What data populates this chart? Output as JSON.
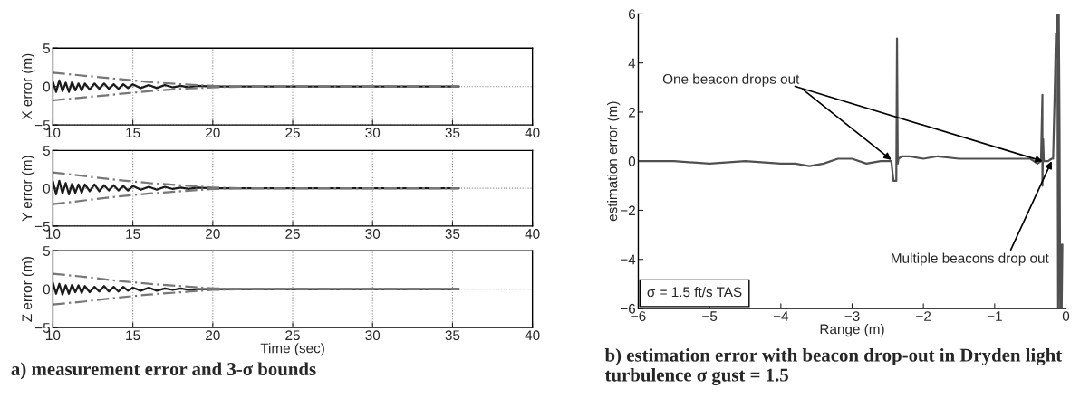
{
  "chart_data": [
    {
      "type": "line",
      "ylabel": "X error (m)",
      "xlim": [
        10,
        40
      ],
      "xticks": [
        10,
        15,
        20,
        25,
        30,
        35,
        40
      ],
      "ylim": [
        -5,
        5
      ],
      "yticks": [
        -5,
        0,
        5
      ],
      "grid": true,
      "series": [
        {
          "color": "#1a1a1a",
          "line_style": "solid",
          "x": [
            10,
            10.2,
            10.4,
            10.6,
            10.8,
            11,
            11.2,
            11.4,
            11.6,
            11.8,
            12,
            12.3,
            12.6,
            12.9,
            13.2,
            13.5,
            13.8,
            14.1,
            14.4,
            14.7,
            15,
            15.5,
            16,
            16.5,
            17,
            17.5,
            18,
            18.5,
            19,
            20,
            35.4
          ],
          "values": [
            0.6,
            -0.7,
            0.8,
            -0.6,
            0.5,
            -0.7,
            0.6,
            -0.5,
            0.4,
            -0.5,
            0.4,
            -0.4,
            0.4,
            -0.3,
            0.4,
            -0.3,
            0.3,
            -0.3,
            0.3,
            -0.2,
            0.3,
            -0.2,
            0.2,
            -0.2,
            0.2,
            -0.1,
            0.1,
            -0.1,
            0.1,
            0,
            0
          ]
        },
        {
          "color": "#777777",
          "line_style": "dashed",
          "x": [
            10,
            12,
            14,
            16,
            18,
            20,
            22,
            35.4
          ],
          "values": [
            1.8,
            1.4,
            1.0,
            0.6,
            0.3,
            0.1,
            0,
            0
          ]
        },
        {
          "color": "#777777",
          "line_style": "dashed",
          "x": [
            10,
            12,
            14,
            16,
            18,
            20,
            22,
            35.4
          ],
          "values": [
            -1.8,
            -1.4,
            -1.0,
            -0.6,
            -0.3,
            -0.1,
            0,
            0
          ]
        }
      ]
    },
    {
      "type": "line",
      "ylabel": "Y error (m)",
      "xlim": [
        10,
        40
      ],
      "xticks": [
        10,
        15,
        20,
        25,
        30,
        35,
        40
      ],
      "ylim": [
        -5,
        5
      ],
      "yticks": [
        -5,
        0,
        5
      ],
      "grid": true,
      "series": [
        {
          "color": "#1a1a1a",
          "line_style": "solid",
          "x": [
            10,
            10.2,
            10.4,
            10.6,
            10.8,
            11,
            11.2,
            11.4,
            11.6,
            11.8,
            12,
            12.3,
            12.6,
            12.9,
            13.2,
            13.5,
            13.8,
            14.1,
            14.4,
            14.7,
            15,
            15.5,
            16,
            16.5,
            17,
            17.5,
            18,
            18.5,
            19,
            20,
            35.4
          ],
          "values": [
            0.9,
            -0.8,
            1.0,
            -0.7,
            0.7,
            -0.8,
            0.6,
            -0.6,
            0.5,
            -0.6,
            0.5,
            -0.4,
            0.5,
            -0.4,
            0.4,
            -0.3,
            0.4,
            -0.3,
            0.3,
            -0.3,
            0.3,
            -0.2,
            0.2,
            -0.2,
            0.2,
            -0.1,
            0.1,
            -0.1,
            0.1,
            0,
            0
          ]
        },
        {
          "color": "#777777",
          "line_style": "dashed",
          "x": [
            10,
            12,
            14,
            16,
            18,
            20,
            22,
            35.4
          ],
          "values": [
            2.1,
            1.6,
            1.1,
            0.7,
            0.4,
            0.1,
            0,
            0
          ]
        },
        {
          "color": "#777777",
          "line_style": "dashed",
          "x": [
            10,
            12,
            14,
            16,
            18,
            20,
            22,
            35.4
          ],
          "values": [
            -2.1,
            -1.6,
            -1.1,
            -0.7,
            -0.4,
            -0.1,
            0,
            0
          ]
        }
      ]
    },
    {
      "type": "line",
      "ylabel": "Z error (m)",
      "xlabel": "Time (sec)",
      "xlim": [
        10,
        40
      ],
      "xticks": [
        10,
        15,
        20,
        25,
        30,
        35,
        40
      ],
      "ylim": [
        -5,
        5
      ],
      "yticks": [
        -5,
        0,
        5
      ],
      "grid": true,
      "annotations": [
        "a) measurement error and 3-σ bounds"
      ],
      "series": [
        {
          "color": "#1a1a1a",
          "line_style": "solid",
          "x": [
            10,
            10.2,
            10.4,
            10.6,
            10.8,
            11,
            11.2,
            11.4,
            11.6,
            11.8,
            12,
            12.3,
            12.6,
            12.9,
            13.2,
            13.5,
            13.8,
            14.1,
            14.4,
            14.7,
            15,
            15.5,
            16,
            16.5,
            17,
            17.5,
            18,
            18.5,
            19,
            20,
            35.4
          ],
          "values": [
            0.8,
            -0.6,
            0.7,
            -0.7,
            0.5,
            -0.6,
            0.6,
            -0.4,
            0.5,
            -0.5,
            0.4,
            -0.4,
            0.3,
            -0.3,
            0.4,
            -0.3,
            0.3,
            -0.3,
            0.3,
            -0.2,
            0.2,
            -0.2,
            0.2,
            -0.2,
            0.1,
            -0.1,
            0.1,
            -0.1,
            0,
            0,
            0
          ]
        },
        {
          "color": "#777777",
          "line_style": "dashed",
          "x": [
            10,
            12,
            14,
            16,
            18,
            20,
            22,
            35.4
          ],
          "values": [
            2.0,
            1.6,
            1.1,
            0.7,
            0.4,
            0.1,
            0,
            0
          ]
        },
        {
          "color": "#777777",
          "line_style": "dashed",
          "x": [
            10,
            12,
            14,
            16,
            18,
            20,
            22,
            35.4
          ],
          "values": [
            -2.0,
            -1.6,
            -1.1,
            -0.7,
            -0.4,
            -0.1,
            0,
            0
          ]
        }
      ]
    },
    {
      "type": "line",
      "ylabel": "estimation error (m)",
      "xlabel": "Range (m)",
      "xlim": [
        -6,
        0
      ],
      "xticks": [
        -6,
        -5,
        -4,
        -3,
        -2,
        -1,
        0
      ],
      "ylim": [
        -6,
        6
      ],
      "yticks": [
        -6,
        -4,
        -2,
        0,
        2,
        4,
        6
      ],
      "grid": false,
      "annotations": [
        {
          "text": "One beacon drops out",
          "x": -2.45,
          "y": 0.05
        },
        {
          "text": "Multiple beacons drop out",
          "x": -0.2,
          "y": 0.0
        },
        "σ = 1.5 ft/s TAS",
        "b) estimation error with beacon drop-out in Dryden light turbulence σ gust = 1.5"
      ],
      "series": [
        {
          "color": "#505050",
          "line_style": "solid",
          "x": [
            -6,
            -5.5,
            -5,
            -4.5,
            -4,
            -3.8,
            -3.6,
            -3.4,
            -3.2,
            -3.0,
            -2.8,
            -2.6,
            -2.5,
            -2.45,
            -2.42,
            -2.38,
            -2.37,
            -2.36,
            -2.35,
            -2.3,
            -2.2,
            -2.0,
            -1.8,
            -1.5,
            -1.2,
            -1.0,
            -0.8,
            -0.6,
            -0.5,
            -0.45,
            -0.4,
            -0.35,
            -0.33,
            -0.33,
            -0.32,
            -0.31,
            -0.25,
            -0.2,
            -0.18,
            -0.16,
            -0.15,
            -0.14,
            -0.13,
            -0.12,
            -0.11,
            -0.1,
            -0.09,
            -0.08,
            -0.07,
            -0.06,
            -0.05
          ],
          "values": [
            0,
            0,
            -0.1,
            0,
            -0.1,
            -0.1,
            -0.2,
            -0.1,
            0.1,
            0.1,
            -0.1,
            0,
            0,
            0,
            -0.8,
            -0.8,
            5.0,
            -0.1,
            0.1,
            0.2,
            0.2,
            0.1,
            0.2,
            0.1,
            0.1,
            0.1,
            0.1,
            0.1,
            0.1,
            0,
            -0.1,
            0,
            2.7,
            -1.0,
            0.9,
            0,
            0,
            0.1,
            0.1,
            2.5,
            3.8,
            5.2,
            5.2,
            6.0,
            -6.0,
            6.0,
            1.5,
            -6.0,
            -3.4,
            -6.0,
            -3.4
          ]
        }
      ]
    }
  ]
}
